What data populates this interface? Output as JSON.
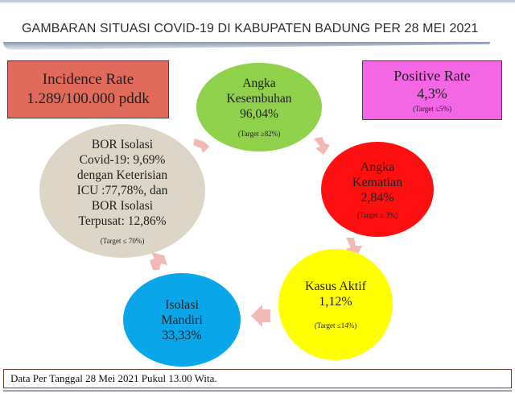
{
  "title": "GAMBARAN SITUASI COVID-19 DI KABUPATEN BADUNG PER 28 MEI 2021",
  "incidence": {
    "label": "Incidence Rate",
    "value": "1.289/100.000 pddk"
  },
  "positive": {
    "label": "Positive Rate",
    "value": "4,3%",
    "target": "(Target ≤5%)"
  },
  "nodes": {
    "kesembuhan": {
      "line1": "Angka",
      "line2": "Kesembuhan",
      "value": "96,04%",
      "target": "(Target ≥82%)",
      "color": "#8fd14b"
    },
    "kematian": {
      "line1": "Angka",
      "line2": "Kematian",
      "value": "2,84%",
      "target": "(Target ≤ 3%)",
      "color": "#ff0f0f"
    },
    "kasus_aktif": {
      "line1": "Kasus Aktif",
      "value": "1,12%",
      "target": "(Target ≤14%)",
      "color": "#ffff00"
    },
    "isolasi_mandiri": {
      "line1": "Isolasi",
      "line2": "Mandiri",
      "value": "33,33%",
      "color": "#0aa6ea"
    },
    "bor": {
      "line1": "BOR Isolasi",
      "line2": "Covid-19: 9,69%",
      "line3": "dengan Keterisian",
      "line4": "ICU :77,78%, dan",
      "line5": "BOR Isolasi",
      "line6": "Terpusat: 12,86%",
      "target": "(Target ≤ 70%)",
      "color": "#ddd6c7"
    }
  },
  "footer": "Data Per Tanggal 28 Mei 2021 Pukul 13.00 Wita.",
  "colors": {
    "arrow": "#f2b8b3",
    "incidence_box": "#e06a5c",
    "positive_box": "#f366e6"
  }
}
